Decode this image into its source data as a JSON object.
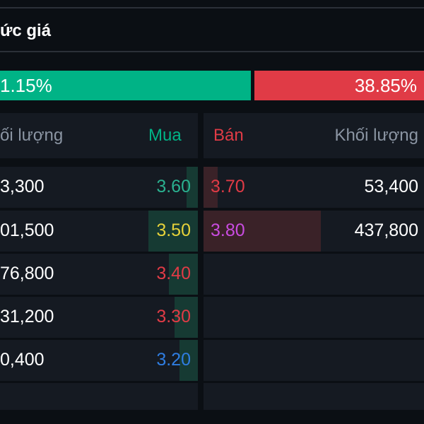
{
  "title": "ức giá",
  "ratio": {
    "buy_label": "1.15%",
    "sell_label": "38.85%"
  },
  "headers": {
    "left_volume": "ối lượng",
    "buy": "Mua",
    "sell": "Bán",
    "right_volume": "Khối lượng"
  },
  "bids": [
    {
      "volume": "3,300",
      "price": "3.60",
      "price_color": "#2ab08f",
      "depth_fraction": 0.22
    },
    {
      "volume": "01,500",
      "price": "3.50",
      "price_color": "#e6d23a",
      "depth_fraction": 0.95
    },
    {
      "volume": "76,800",
      "price": "3.40",
      "price_color": "#e03b46",
      "depth_fraction": 0.55
    },
    {
      "volume": "31,200",
      "price": "3.30",
      "price_color": "#e03b46",
      "depth_fraction": 0.45
    },
    {
      "volume": "0,400",
      "price": "3.20",
      "price_color": "#2f7de1",
      "depth_fraction": 0.35
    }
  ],
  "asks": [
    {
      "volume": "53,400",
      "price": "3.70",
      "price_color": "#e03b46",
      "depth_fraction": 0.12
    },
    {
      "volume": "437,800",
      "price": "3.80",
      "price_color": "#c94ce0",
      "depth_fraction": 1.0
    }
  ],
  "colors": {
    "buy": "#00b386",
    "sell": "#e03b46",
    "background": "#0b0f14",
    "panel": "#151a22"
  }
}
